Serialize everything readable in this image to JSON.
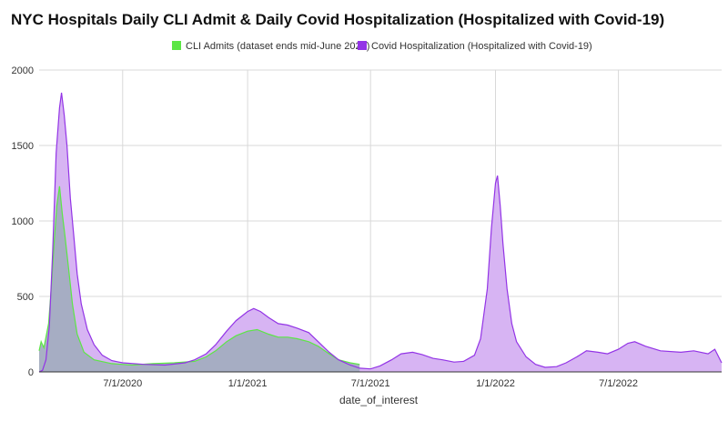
{
  "chart_data": {
    "type": "area",
    "title": "NYC Hospitals Daily CLI Admit & Daily Covid Hospitalization (Hospitalized with Covid-19)",
    "xlabel": "date_of_interest",
    "ylabel": "",
    "x_range": [
      "2020-02-29",
      "2022-11-30"
    ],
    "ylim": [
      0,
      2000
    ],
    "y_ticks": [
      0,
      500,
      1000,
      1500,
      2000
    ],
    "x_ticks": [
      {
        "date": "2020-07-01",
        "label": "7/1/2020"
      },
      {
        "date": "2021-01-01",
        "label": "1/1/2021"
      },
      {
        "date": "2021-07-01",
        "label": "7/1/2021"
      },
      {
        "date": "2022-01-01",
        "label": "1/1/2022"
      },
      {
        "date": "2022-07-01",
        "label": "7/1/2022"
      }
    ],
    "grid": true,
    "legend_position": "top",
    "series": [
      {
        "name": "Covid Hospitalization (Hospitalized with Covid-19)",
        "color": "#9334e6",
        "fill": "#d7b4f3",
        "points": [
          [
            "2020-02-29",
            0
          ],
          [
            "2020-03-05",
            10
          ],
          [
            "2020-03-10",
            80
          ],
          [
            "2020-03-15",
            300
          ],
          [
            "2020-03-20",
            800
          ],
          [
            "2020-03-25",
            1450
          ],
          [
            "2020-03-30",
            1750
          ],
          [
            "2020-04-02",
            1850
          ],
          [
            "2020-04-06",
            1700
          ],
          [
            "2020-04-10",
            1500
          ],
          [
            "2020-04-15",
            1150
          ],
          [
            "2020-04-20",
            900
          ],
          [
            "2020-04-25",
            650
          ],
          [
            "2020-05-01",
            450
          ],
          [
            "2020-05-10",
            280
          ],
          [
            "2020-05-20",
            180
          ],
          [
            "2020-06-01",
            110
          ],
          [
            "2020-06-15",
            75
          ],
          [
            "2020-07-01",
            60
          ],
          [
            "2020-08-01",
            50
          ],
          [
            "2020-09-01",
            45
          ],
          [
            "2020-10-01",
            60
          ],
          [
            "2020-10-15",
            80
          ],
          [
            "2020-11-01",
            120
          ],
          [
            "2020-11-15",
            180
          ],
          [
            "2020-12-01",
            270
          ],
          [
            "2020-12-15",
            340
          ],
          [
            "2021-01-01",
            400
          ],
          [
            "2021-01-10",
            420
          ],
          [
            "2021-01-20",
            400
          ],
          [
            "2021-02-01",
            360
          ],
          [
            "2021-02-15",
            320
          ],
          [
            "2021-03-01",
            310
          ],
          [
            "2021-03-15",
            290
          ],
          [
            "2021-04-01",
            260
          ],
          [
            "2021-04-15",
            200
          ],
          [
            "2021-05-01",
            130
          ],
          [
            "2021-05-15",
            80
          ],
          [
            "2021-06-01",
            45
          ],
          [
            "2021-06-15",
            25
          ],
          [
            "2021-07-01",
            20
          ],
          [
            "2021-07-15",
            40
          ],
          [
            "2021-08-01",
            80
          ],
          [
            "2021-08-15",
            120
          ],
          [
            "2021-09-01",
            130
          ],
          [
            "2021-09-15",
            115
          ],
          [
            "2021-10-01",
            90
          ],
          [
            "2021-10-15",
            80
          ],
          [
            "2021-11-01",
            65
          ],
          [
            "2021-11-15",
            70
          ],
          [
            "2021-12-01",
            110
          ],
          [
            "2021-12-10",
            220
          ],
          [
            "2021-12-20",
            550
          ],
          [
            "2021-12-26",
            950
          ],
          [
            "2022-01-01",
            1250
          ],
          [
            "2022-01-04",
            1300
          ],
          [
            "2022-01-08",
            1100
          ],
          [
            "2022-01-12",
            850
          ],
          [
            "2022-01-18",
            550
          ],
          [
            "2022-01-25",
            320
          ],
          [
            "2022-02-01",
            200
          ],
          [
            "2022-02-15",
            100
          ],
          [
            "2022-03-01",
            50
          ],
          [
            "2022-03-15",
            30
          ],
          [
            "2022-04-01",
            35
          ],
          [
            "2022-04-15",
            60
          ],
          [
            "2022-05-01",
            100
          ],
          [
            "2022-05-15",
            140
          ],
          [
            "2022-06-01",
            130
          ],
          [
            "2022-06-15",
            120
          ],
          [
            "2022-07-01",
            150
          ],
          [
            "2022-07-15",
            190
          ],
          [
            "2022-07-25",
            200
          ],
          [
            "2022-08-10",
            170
          ],
          [
            "2022-09-01",
            140
          ],
          [
            "2022-10-01",
            130
          ],
          [
            "2022-10-20",
            140
          ],
          [
            "2022-11-10",
            120
          ],
          [
            "2022-11-20",
            150
          ],
          [
            "2022-11-30",
            60
          ]
        ]
      },
      {
        "name": "CLI Admits (dataset ends mid-June 2021)",
        "color": "#5ce645",
        "fill": "#a3adc0",
        "points": [
          [
            "2020-02-29",
            140
          ],
          [
            "2020-03-03",
            200
          ],
          [
            "2020-03-07",
            160
          ],
          [
            "2020-03-10",
            230
          ],
          [
            "2020-03-14",
            320
          ],
          [
            "2020-03-18",
            560
          ],
          [
            "2020-03-22",
            850
          ],
          [
            "2020-03-26",
            1100
          ],
          [
            "2020-03-30",
            1230
          ],
          [
            "2020-04-03",
            1050
          ],
          [
            "2020-04-07",
            900
          ],
          [
            "2020-04-12",
            700
          ],
          [
            "2020-04-18",
            450
          ],
          [
            "2020-04-25",
            250
          ],
          [
            "2020-05-05",
            130
          ],
          [
            "2020-05-20",
            80
          ],
          [
            "2020-06-15",
            55
          ],
          [
            "2020-07-15",
            45
          ],
          [
            "2020-08-15",
            55
          ],
          [
            "2020-09-15",
            60
          ],
          [
            "2020-10-15",
            70
          ],
          [
            "2020-11-01",
            100
          ],
          [
            "2020-11-15",
            140
          ],
          [
            "2020-12-01",
            200
          ],
          [
            "2020-12-15",
            240
          ],
          [
            "2021-01-01",
            270
          ],
          [
            "2021-01-15",
            280
          ],
          [
            "2021-02-01",
            250
          ],
          [
            "2021-02-15",
            230
          ],
          [
            "2021-03-01",
            230
          ],
          [
            "2021-03-15",
            220
          ],
          [
            "2021-04-01",
            200
          ],
          [
            "2021-04-15",
            170
          ],
          [
            "2021-05-01",
            120
          ],
          [
            "2021-05-15",
            80
          ],
          [
            "2021-06-01",
            60
          ],
          [
            "2021-06-15",
            50
          ]
        ]
      }
    ]
  }
}
